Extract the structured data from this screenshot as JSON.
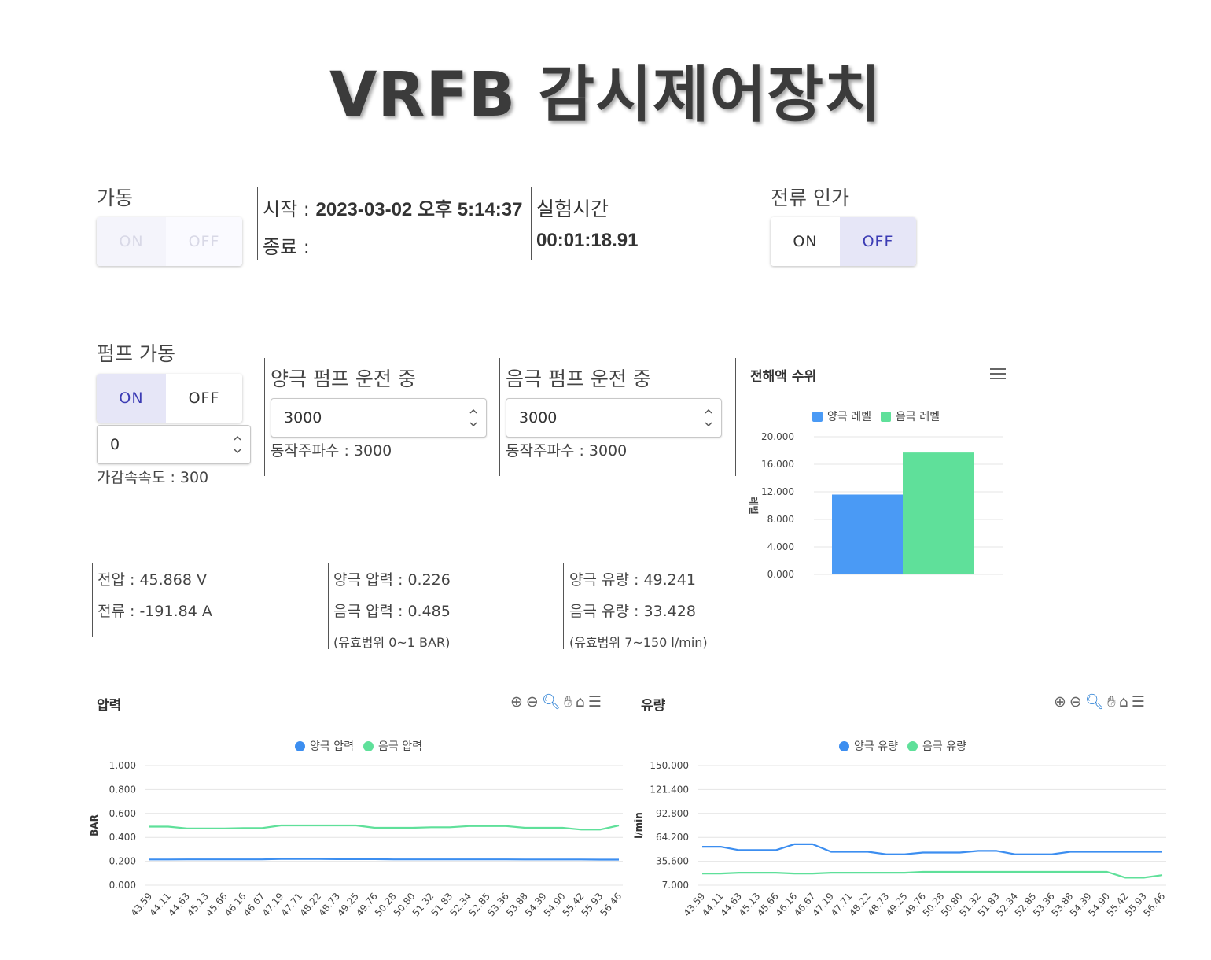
{
  "title": "VRFB 감시제어장치",
  "operation": {
    "label": "가동",
    "on": "ON",
    "off": "OFF"
  },
  "time": {
    "start_label": "시작 :",
    "start_value": "2023-03-02 오후 5:14:37",
    "end_label": "종료 :",
    "elapsed_label": "실험시간",
    "elapsed_value": "00:01:18.91"
  },
  "current_apply": {
    "label": "전류 인가",
    "on": "ON",
    "off": "OFF",
    "selected": "OFF"
  },
  "pump": {
    "label": "펌프 가동",
    "on": "ON",
    "off": "OFF",
    "selected": "ON",
    "value": "0",
    "accel_text": "가감속속도 : 300"
  },
  "pos_pump": {
    "label": "양극 펌프 운전 중",
    "value": "3000",
    "freq_text": "동작주파수 : 3000"
  },
  "neg_pump": {
    "label": "음극 펌프 운전 중",
    "value": "3000",
    "freq_text": "동작주파수 : 3000"
  },
  "readings": {
    "voltage": "전압 : 45.868 V",
    "current": "전류 : -191.84 A",
    "pos_pressure": "양극 압력 : 0.226",
    "neg_pressure": "음극 압력 : 0.485",
    "pressure_range": "(유효범위 0~1 BAR)",
    "pos_flow": "양극 유량 : 49.241",
    "neg_flow": "음극 유량 : 33.428",
    "flow_range": "(유효범위 7~150 l/min)"
  },
  "colors": {
    "blue": "#4a9af5",
    "green": "#5fe09a",
    "accent": "#3c3cb4"
  },
  "chart_data": [
    {
      "type": "bar",
      "title": "전해액 수위",
      "ylabel": "레벨",
      "categories": [
        ""
      ],
      "series": [
        {
          "name": "양극 레벨",
          "values": [
            11.6
          ]
        },
        {
          "name": "음극 레벨",
          "values": [
            17.7
          ]
        }
      ],
      "yticks": [
        "20.000",
        "16.000",
        "12.000",
        "8.000",
        "4.000",
        "0.000"
      ],
      "ylim": [
        0,
        20
      ],
      "legend": "top",
      "grid": true
    },
    {
      "type": "line",
      "title": "압력",
      "ylabel": "BAR",
      "x": [
        "43.59",
        "44.11",
        "44.63",
        "45.13",
        "45.66",
        "46.16",
        "46.67",
        "47.19",
        "47.71",
        "48.22",
        "48.73",
        "49.25",
        "49.76",
        "50.28",
        "50.80",
        "51.32",
        "51.83",
        "52.34",
        "52.85",
        "53.36",
        "53.88",
        "54.39",
        "54.90",
        "55.42",
        "55.93",
        "56.46"
      ],
      "series": [
        {
          "name": "양극 압력",
          "values": [
            0.215,
            0.215,
            0.216,
            0.216,
            0.216,
            0.216,
            0.216,
            0.22,
            0.22,
            0.22,
            0.218,
            0.218,
            0.218,
            0.216,
            0.216,
            0.216,
            0.216,
            0.216,
            0.216,
            0.216,
            0.215,
            0.215,
            0.215,
            0.215,
            0.214,
            0.214
          ]
        },
        {
          "name": "음극 압력",
          "values": [
            0.49,
            0.49,
            0.475,
            0.475,
            0.475,
            0.478,
            0.478,
            0.5,
            0.5,
            0.5,
            0.5,
            0.5,
            0.48,
            0.48,
            0.48,
            0.485,
            0.485,
            0.495,
            0.495,
            0.495,
            0.48,
            0.48,
            0.48,
            0.465,
            0.465,
            0.5
          ]
        }
      ],
      "yticks": [
        "1.000",
        "0.800",
        "0.600",
        "0.400",
        "0.200",
        "0.000"
      ],
      "ylim": [
        0,
        1
      ],
      "legend": "top",
      "grid": true
    },
    {
      "type": "line",
      "title": "유량",
      "ylabel": "l/min",
      "x": [
        "43.59",
        "44.11",
        "44.63",
        "45.13",
        "45.66",
        "46.16",
        "46.67",
        "47.19",
        "47.71",
        "48.22",
        "48.73",
        "49.25",
        "49.76",
        "50.28",
        "50.80",
        "51.32",
        "51.83",
        "52.34",
        "52.85",
        "53.36",
        "53.88",
        "54.39",
        "54.90",
        "55.42",
        "55.93",
        "56.46"
      ],
      "series": [
        {
          "name": "양극 유량",
          "values": [
            53,
            53,
            49,
            49,
            49,
            56,
            56,
            47,
            47,
            47,
            44,
            44,
            46,
            46,
            46,
            48,
            48,
            44,
            44,
            44,
            47,
            47,
            47,
            47,
            47,
            47
          ]
        },
        {
          "name": "음극 유량",
          "values": [
            21,
            21,
            22,
            22,
            22,
            21,
            21,
            22,
            22,
            22,
            22,
            22,
            23,
            23,
            23,
            23,
            23,
            23,
            23,
            23,
            23,
            23,
            23,
            16,
            16,
            19
          ]
        }
      ],
      "yticks": [
        "150.000",
        "121.400",
        "92.800",
        "64.200",
        "35.600",
        "7.000"
      ],
      "ylim": [
        7,
        150
      ],
      "legend": "top",
      "grid": true
    }
  ]
}
